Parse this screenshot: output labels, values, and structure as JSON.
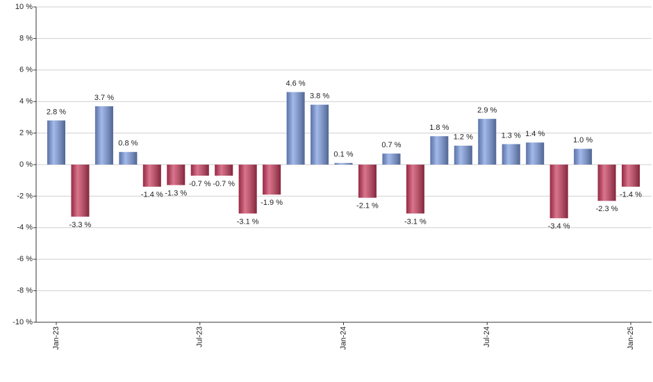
{
  "chart_data": {
    "type": "bar",
    "categories": [
      "Jan-23",
      null,
      null,
      null,
      null,
      null,
      "Jul-23",
      null,
      null,
      null,
      null,
      null,
      "Jan-24",
      null,
      null,
      null,
      null,
      null,
      "Jul-24",
      null,
      null,
      null,
      null,
      null,
      "Jan-25"
    ],
    "values": [
      2.8,
      -3.3,
      3.7,
      0.8,
      -1.4,
      -1.3,
      -0.7,
      -0.7,
      -3.1,
      -1.9,
      4.6,
      3.8,
      0.1,
      -2.1,
      0.7,
      -3.1,
      1.8,
      1.2,
      2.9,
      1.3,
      1.4,
      -3.4,
      1.0,
      -2.3,
      -1.4
    ],
    "value_labels": [
      "2.8 %",
      "-3.3 %",
      "3.7 %",
      "0.8 %",
      "-1.4 %",
      "-1.3 %",
      "-0.7 %",
      "-0.7 %",
      "-3.1 %",
      "-1.9 %",
      "4.6 %",
      "3.8 %",
      "0.1 %",
      "-2.1 %",
      "0.7 %",
      "-3.1 %",
      "1.8 %",
      "1.2 %",
      "2.9 %",
      "1.3 %",
      "1.4 %",
      "-3.4 %",
      "1.0 %",
      "-2.3 %",
      "-1.4 %"
    ],
    "color_positive": "#7b9be0",
    "color_negative": "#c93a5c",
    "ylim": [
      -10,
      10
    ],
    "yticks": [
      {
        "value": -10,
        "label": "-10 %"
      },
      {
        "value": -8,
        "label": "-8 %"
      },
      {
        "value": -6,
        "label": "-6 %"
      },
      {
        "value": -4,
        "label": "-4 %"
      },
      {
        "value": -2,
        "label": "-2 %"
      },
      {
        "value": 0,
        "label": "0 %"
      },
      {
        "value": 2,
        "label": "2 %"
      },
      {
        "value": 4,
        "label": "4 %"
      },
      {
        "value": 6,
        "label": "6 %"
      },
      {
        "value": 8,
        "label": "8 %"
      },
      {
        "value": 10,
        "label": "10 %"
      }
    ],
    "grid": true
  }
}
